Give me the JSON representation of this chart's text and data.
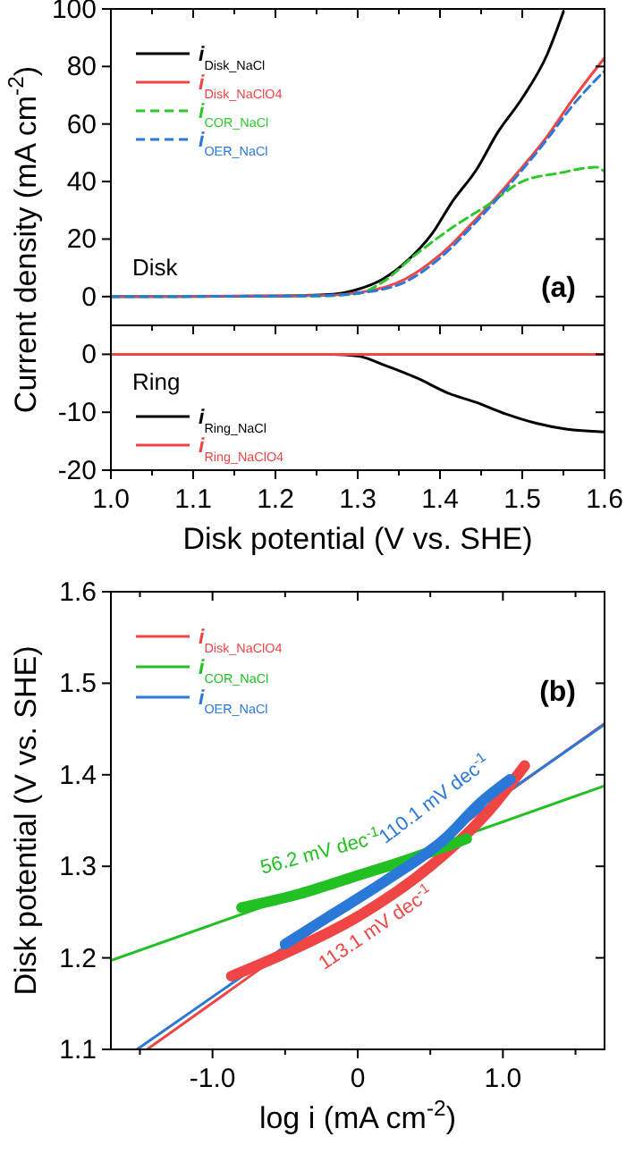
{
  "chart_data": [
    {
      "type": "line",
      "ylabel": "Current density (mA cm$^{-2}$)",
      "xlim": [
        1.0,
        1.6
      ],
      "ylim": [
        -10,
        100
      ],
      "yticks": [
        0,
        20,
        40,
        60,
        80,
        100
      ],
      "xticks": [
        1.0,
        {
          "value": 1.05,
          "label": null
        },
        1.1,
        {
          "value": 1.15,
          "label": null
        },
        1.2,
        {
          "value": 1.25,
          "label": null
        },
        1.3,
        {
          "value": 1.35,
          "label": null
        },
        1.4,
        {
          "value": 1.45,
          "label": null
        },
        1.5,
        {
          "value": 1.55,
          "label": null
        },
        1.6
      ],
      "tick_labels": "y",
      "legend": "top left",
      "annotations": [
        "Disk",
        "(a)"
      ],
      "series": [
        {
          "name": "i$_{Disk_NaCl}$",
          "color": "#000000",
          "line_style": "solid",
          "x": [
            1.0,
            1.2,
            1.27,
            1.3,
            1.33,
            1.36,
            1.39,
            1.415,
            1.444,
            1.47,
            1.5,
            1.53,
            1.55
          ],
          "values": [
            0,
            0.2,
            0.8,
            2.5,
            6,
            12.4,
            21.7,
            33,
            44,
            57,
            69,
            84,
            99
          ]
        },
        {
          "name": "i$_{Disk_NaClO4}$",
          "color": "#f04545",
          "line_style": "solid",
          "x": [
            1.0,
            1.25,
            1.314,
            1.357,
            1.4,
            1.444,
            1.488,
            1.531,
            1.56,
            1.6
          ],
          "values": [
            0,
            0.3,
            2,
            6,
            14.5,
            27,
            41,
            56,
            68,
            83
          ]
        },
        {
          "name": "i$_{COR_NaCl}$",
          "color": "#2ec82e",
          "line_style": "dashed",
          "x": [
            1.0,
            1.25,
            1.3,
            1.33,
            1.37,
            1.415,
            1.459,
            1.5,
            1.546,
            1.59,
            1.6
          ],
          "values": [
            0,
            0.2,
            1,
            5,
            14.5,
            24,
            32,
            40,
            43,
            45,
            43.4
          ]
        },
        {
          "name": "i$_{OER_NaCl}$",
          "color": "#2a78d8",
          "line_style": "dashed",
          "x": [
            1.0,
            1.25,
            1.314,
            1.357,
            1.4,
            1.444,
            1.488,
            1.531,
            1.56,
            1.6
          ],
          "values": [
            0,
            0.3,
            1.7,
            5,
            13.4,
            26,
            40,
            55,
            66,
            78.5
          ]
        }
      ]
    },
    {
      "type": "line",
      "xlabel": "Disk potential (V vs. SHE)",
      "xlim": [
        1.0,
        1.6
      ],
      "ylim": [
        -20,
        5
      ],
      "yticks": [
        -20,
        -10,
        0
      ],
      "xticks": [
        {
          "value": 1.0,
          "label": "1.0"
        },
        {
          "value": 1.05,
          "label": null
        },
        1.1,
        {
          "value": 1.15,
          "label": null
        },
        1.2,
        {
          "value": 1.25,
          "label": null
        },
        1.3,
        {
          "value": 1.35,
          "label": null
        },
        1.4,
        {
          "value": 1.45,
          "label": null
        },
        1.5,
        {
          "value": 1.55,
          "label": null
        },
        1.6
      ],
      "legend": "bottom left",
      "annotations": [
        "Ring"
      ],
      "series": [
        {
          "name": "i$_{Ring_NaCl}$",
          "color": "#000000",
          "line_style": "solid",
          "x": [
            1.0,
            1.27,
            1.3,
            1.335,
            1.372,
            1.41,
            1.444,
            1.48,
            1.517,
            1.553,
            1.6
          ],
          "values": [
            0,
            0,
            -0.3,
            -2,
            -4.1,
            -6.7,
            -8.3,
            -10.3,
            -11.9,
            -12.9,
            -13.4
          ]
        },
        {
          "name": "i$_{Ring_NaClO4}$",
          "color": "#f04545",
          "line_style": "solid",
          "x": [
            1.0,
            1.6
          ],
          "values": [
            0,
            0
          ]
        }
      ]
    },
    {
      "type": "line",
      "xlabel": "log i (mA cm$^{-2}$)",
      "ylabel": "Disk potential (V vs. SHE)",
      "xlim": [
        -1.7,
        1.7
      ],
      "ylim": [
        1.1,
        1.6
      ],
      "yticks": [
        1.1,
        1.2,
        1.3,
        1.4,
        1.5,
        1.6
      ],
      "xticks": [
        {
          "value": -1.5,
          "label": null
        },
        {
          "value": -1.0,
          "label": "-1.0"
        },
        {
          "value": -0.5,
          "label": null
        },
        0,
        {
          "value": 0.5,
          "label": null
        },
        {
          "value": 1.0,
          "label": "1.0"
        },
        {
          "value": 1.5,
          "label": null
        }
      ],
      "legend": "top left",
      "annotations": [
        "(b)",
        "56.2 mV dec$^{-1}$",
        "110.1 mV dec$^{-1}$",
        "113.1 mV dec$^{-1}$"
      ],
      "series": [
        {
          "color": "#f04545",
          "x": [
            -1.45,
            1.7
          ],
          "values": [
            1.1,
            1.456
          ]
        },
        {
          "color": "#2a78d8",
          "x": [
            -1.52,
            1.7
          ],
          "values": [
            1.1,
            1.455
          ]
        },
        {
          "color": "#22c022",
          "x": [
            -1.7,
            1.7
          ],
          "values": [
            1.197,
            1.388
          ]
        },
        {
          "name": "i$_{Disk_NaClO4}$",
          "color": "#f04545",
          "x": [
            -0.87,
            -0.5,
            0,
            0.5,
            0.9,
            1.15
          ],
          "values": [
            1.18,
            1.205,
            1.245,
            1.3,
            1.36,
            1.41
          ]
        },
        {
          "name": "i$_{COR_NaCl}$",
          "color": "#22c022",
          "x": [
            -0.8,
            -0.4,
            0,
            0.4,
            0.75
          ],
          "values": [
            1.255,
            1.27,
            1.29,
            1.31,
            1.33
          ]
        },
        {
          "name": "i$_{OER_NaCl}$",
          "color": "#2a78d8",
          "x": [
            -0.5,
            -0.2,
            0.2,
            0.6,
            0.85,
            1.05
          ],
          "values": [
            1.215,
            1.245,
            1.285,
            1.33,
            1.37,
            1.395
          ]
        }
      ]
    }
  ]
}
